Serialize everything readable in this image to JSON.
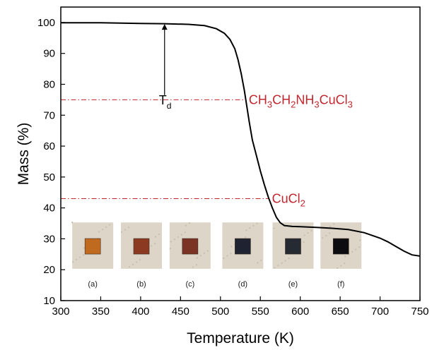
{
  "chart_data": {
    "type": "line",
    "title": "",
    "xlabel": "Temperature (K)",
    "ylabel": "Mass (%)",
    "xlim": [
      300,
      750
    ],
    "ylim": [
      10,
      105
    ],
    "xticks": [
      300,
      350,
      400,
      450,
      500,
      550,
      600,
      650,
      700,
      750
    ],
    "yticks": [
      10,
      20,
      30,
      40,
      50,
      60,
      70,
      80,
      90,
      100
    ],
    "grid": false,
    "series": [
      {
        "color": "#000000",
        "x": [
          300,
          350,
          400,
          430,
          460,
          480,
          495,
          505,
          512,
          518,
          522,
          526,
          530,
          533,
          536,
          540,
          545,
          550,
          555,
          560,
          565,
          570,
          575,
          580,
          590,
          600,
          620,
          640,
          660,
          680,
          700,
          710,
          720,
          730,
          740,
          750
        ],
        "y": [
          99.9,
          99.9,
          99.7,
          99.6,
          99.4,
          99.0,
          98.0,
          96.5,
          94.5,
          91.5,
          88.0,
          83.5,
          78.0,
          73.0,
          68.0,
          62.0,
          57.0,
          52.0,
          47.5,
          43.5,
          40.0,
          37.0,
          35.2,
          34.3,
          34.0,
          33.9,
          33.7,
          33.4,
          33.0,
          32.0,
          30.2,
          29.0,
          27.5,
          26.0,
          24.8,
          24.4
        ]
      }
    ],
    "reference_lines": [
      {
        "y": 75,
        "x_start": 300,
        "x_end": 532,
        "label_main": "CH",
        "label_parts": [
          "3",
          "CH",
          "2",
          "NH",
          "3",
          "CuCl",
          "3"
        ],
        "color": "#c0262d"
      },
      {
        "y": 43,
        "x_start": 300,
        "x_end": 561,
        "label_main": "CuCl",
        "label_parts": [
          "2"
        ],
        "color": "#c0262d"
      }
    ],
    "annotations": [
      {
        "type": "arrow",
        "x": 430,
        "y_from": 76.5,
        "y_to": 99.5,
        "label_main": "T",
        "label_sub": "d"
      }
    ],
    "photos": [
      {
        "label": "(a)",
        "x_center": 340,
        "sample_color": "#c06a1f"
      },
      {
        "label": "(b)",
        "x_center": 401,
        "sample_color": "#8c3a22"
      },
      {
        "label": "(c)",
        "x_center": 462,
        "sample_color": "#7a3324"
      },
      {
        "label": "(d)",
        "x_center": 528,
        "sample_color": "#1f2230"
      },
      {
        "label": "(e)",
        "x_center": 591,
        "sample_color": "#262a33"
      },
      {
        "label": "(f)",
        "x_center": 651,
        "sample_color": "#0c0c10"
      }
    ]
  }
}
